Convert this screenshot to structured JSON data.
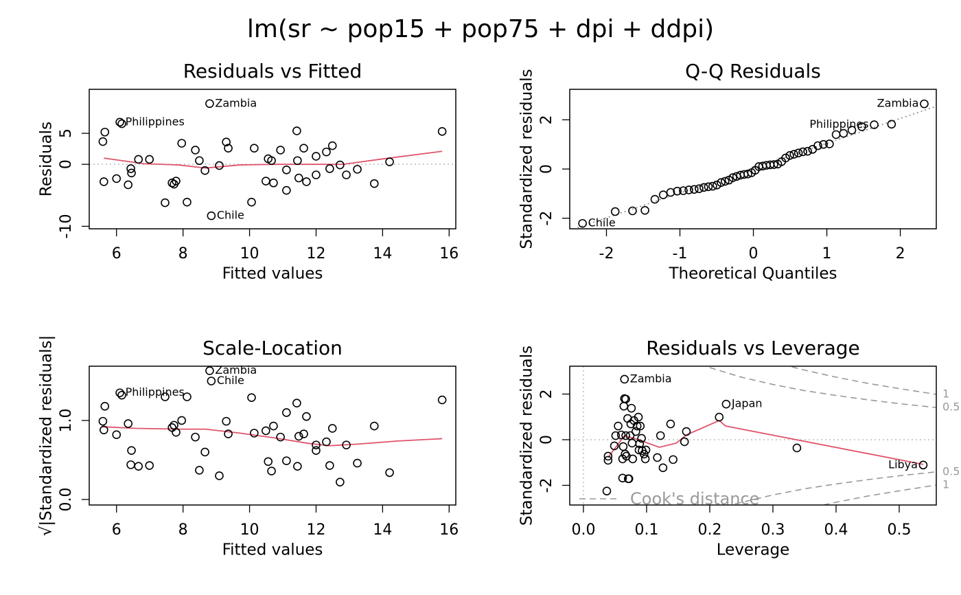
{
  "title": "lm(sr ~ pop15 + pop75 + dpi + ddpi)",
  "chart_data": [
    {
      "type": "scatter",
      "title": "Residuals vs Fitted",
      "xlabel": "Fitted values",
      "ylabel": "Residuals",
      "xlim": [
        5.18,
        16.2
      ],
      "ylim": [
        -10.4,
        12.1
      ],
      "xticks": [
        6,
        8,
        10,
        12,
        14,
        16
      ],
      "yticks": [
        -10,
        0,
        5
      ],
      "hline": 0,
      "color": "#000000",
      "x": [
        5.59,
        5.65,
        5.62,
        6.0,
        6.1,
        6.16,
        6.35,
        6.43,
        6.45,
        6.66,
        6.99,
        7.46,
        7.67,
        7.73,
        7.79,
        7.96,
        8.12,
        8.37,
        8.49,
        8.66,
        8.8,
        8.85,
        9.09,
        9.3,
        9.36,
        10.06,
        10.14,
        10.49,
        10.56,
        10.66,
        10.72,
        10.93,
        11.11,
        11.11,
        11.42,
        11.44,
        11.48,
        11.63,
        11.71,
        12.0,
        12.0,
        12.31,
        12.41,
        12.49,
        12.72,
        12.91,
        13.24,
        13.75,
        14.21,
        15.79
      ],
      "values": [
        3.67,
        5.2,
        -2.8,
        -2.3,
        6.8,
        6.55,
        -3.3,
        -0.7,
        -1.4,
        0.8,
        0.8,
        -6.2,
        -3.0,
        -3.2,
        -2.7,
        3.4,
        -6.1,
        2.3,
        0.6,
        -1.0,
        9.8,
        -8.3,
        -0.2,
        3.6,
        2.6,
        -6.1,
        2.6,
        -2.7,
        0.9,
        0.6,
        -3.0,
        2.3,
        -0.9,
        -4.2,
        5.4,
        0.6,
        -2.2,
        2.6,
        -2.8,
        1.3,
        -1.7,
        2.0,
        -0.7,
        3.0,
        -0.1,
        -1.7,
        -0.8,
        -3.1,
        0.4,
        5.3
      ],
      "point_labels": [
        null,
        null,
        null,
        null,
        "Philippines",
        null,
        null,
        null,
        null,
        null,
        null,
        null,
        null,
        null,
        null,
        null,
        null,
        null,
        null,
        null,
        "Zambia",
        "Chile",
        null,
        null,
        null,
        null,
        null,
        null,
        null,
        null,
        null,
        null,
        null,
        null,
        null,
        null,
        null,
        null,
        null,
        null,
        null,
        null,
        null,
        null,
        null,
        null,
        null,
        null,
        null,
        null
      ],
      "smooth": {
        "color": "#df536b",
        "x": [
          5.62,
          6.82,
          7.86,
          8.68,
          9.71,
          10.74,
          11.77,
          12.8,
          14.04,
          15.79
        ],
        "values": [
          1.0,
          0.1,
          -0.1,
          -0.6,
          -0.1,
          0,
          0,
          0,
          0.9,
          2.1
        ]
      }
    },
    {
      "type": "scatter",
      "title": "Q-Q Residuals",
      "xlabel": "Theoretical Quantiles",
      "ylabel": "Standardized residuals",
      "xlim": [
        -2.5,
        2.49
      ],
      "ylim": [
        -2.43,
        3.24
      ],
      "xticks": [
        -2,
        -1,
        0,
        1,
        2
      ],
      "yticks": [
        -2,
        0,
        2
      ],
      "color": "#000000",
      "x": [
        -2.326,
        -1.881,
        -1.645,
        -1.476,
        -1.341,
        -1.227,
        -1.126,
        -1.036,
        -0.954,
        -0.878,
        -0.806,
        -0.739,
        -0.674,
        -0.613,
        -0.553,
        -0.496,
        -0.44,
        -0.385,
        -0.332,
        -0.279,
        -0.228,
        -0.176,
        -0.126,
        -0.075,
        -0.025,
        0.025,
        0.075,
        0.126,
        0.176,
        0.228,
        0.279,
        0.332,
        0.385,
        0.44,
        0.496,
        0.553,
        0.613,
        0.674,
        0.739,
        0.806,
        0.878,
        0.954,
        1.036,
        1.126,
        1.227,
        1.341,
        1.476,
        1.645,
        1.881,
        2.326
      ],
      "values": [
        -2.21,
        -1.73,
        -1.7,
        -1.68,
        -1.23,
        -1.05,
        -0.95,
        -0.9,
        -0.88,
        -0.85,
        -0.83,
        -0.8,
        -0.75,
        -0.72,
        -0.7,
        -0.65,
        -0.55,
        -0.5,
        -0.45,
        -0.35,
        -0.3,
        -0.25,
        -0.22,
        -0.2,
        -0.15,
        -0.05,
        0.1,
        0.12,
        0.15,
        0.17,
        0.18,
        0.2,
        0.3,
        0.45,
        0.55,
        0.6,
        0.65,
        0.7,
        0.72,
        0.8,
        0.95,
        1.0,
        1.02,
        1.4,
        1.45,
        1.58,
        1.72,
        1.8,
        1.82,
        2.65
      ],
      "point_labels": [
        "Chile",
        null,
        null,
        null,
        null,
        null,
        null,
        null,
        null,
        null,
        null,
        null,
        null,
        null,
        null,
        null,
        null,
        null,
        null,
        null,
        null,
        null,
        null,
        null,
        null,
        null,
        null,
        null,
        null,
        null,
        null,
        null,
        null,
        null,
        null,
        null,
        null,
        null,
        null,
        null,
        null,
        null,
        null,
        null,
        null,
        null,
        null,
        "Philippines",
        null,
        "Zambia"
      ],
      "ref_line": {
        "x": [
          -2.5,
          2.49
        ],
        "values": [
          -2.49,
          2.55
        ]
      }
    },
    {
      "type": "scatter",
      "title": "Scale-Location",
      "xlabel": "Fitted values",
      "ylabel": "√|Standardized residuals|",
      "xlim": [
        5.18,
        16.2
      ],
      "ylim": [
        -0.07,
        1.687
      ],
      "xticks": [
        6,
        8,
        10,
        12,
        14,
        16
      ],
      "yticks": [
        {
          "value": 0,
          "label": "0.0"
        },
        {
          "value": 1,
          "label": "1.0"
        }
      ],
      "color": "#000000",
      "x": [
        5.59,
        5.65,
        5.62,
        6.0,
        6.1,
        6.16,
        6.35,
        6.43,
        6.45,
        6.66,
        6.99,
        7.46,
        7.67,
        7.73,
        7.79,
        7.96,
        8.12,
        8.37,
        8.49,
        8.66,
        8.8,
        8.85,
        9.09,
        9.3,
        9.36,
        10.06,
        10.14,
        10.49,
        10.56,
        10.66,
        10.72,
        10.93,
        11.11,
        11.11,
        11.42,
        11.44,
        11.48,
        11.63,
        11.71,
        12.0,
        12.0,
        12.31,
        12.41,
        12.49,
        12.72,
        12.91,
        13.24,
        13.75,
        14.21,
        15.79
      ],
      "values": [
        0.99,
        1.18,
        0.88,
        0.82,
        1.35,
        1.32,
        0.96,
        0.44,
        0.62,
        0.42,
        0.43,
        1.3,
        0.91,
        0.94,
        0.85,
        1.0,
        1.3,
        0.79,
        0.37,
        0.6,
        1.63,
        1.5,
        0.3,
        0.99,
        0.83,
        1.29,
        0.84,
        0.87,
        0.48,
        0.36,
        0.93,
        0.79,
        0.49,
        1.1,
        1.22,
        0.42,
        0.8,
        0.83,
        1.05,
        0.69,
        0.62,
        0.73,
        0.43,
        0.9,
        0.22,
        0.69,
        0.46,
        0.93,
        0.34,
        1.26
      ],
      "point_labels": [
        null,
        null,
        null,
        null,
        "Philippines",
        null,
        null,
        null,
        null,
        null,
        null,
        null,
        null,
        null,
        null,
        null,
        null,
        null,
        null,
        null,
        "Zambia",
        "Chile",
        null,
        null,
        null,
        null,
        null,
        null,
        null,
        null,
        null,
        null,
        null,
        null,
        null,
        null,
        null,
        null,
        null,
        null,
        null,
        null,
        null,
        null,
        null,
        null,
        null,
        null,
        null,
        null
      ],
      "smooth": {
        "color": "#df536b",
        "x": [
          5.59,
          6.62,
          7.86,
          8.68,
          9.71,
          10.74,
          11.77,
          12.39,
          13.21,
          14.45,
          15.79
        ],
        "values": [
          0.92,
          0.9,
          0.89,
          0.89,
          0.84,
          0.78,
          0.71,
          0.68,
          0.7,
          0.74,
          0.77
        ]
      }
    },
    {
      "type": "scatter",
      "title": "Residuals vs Leverage",
      "xlabel": "Leverage",
      "ylabel": "Standardized residuals",
      "xlim": [
        -0.0217,
        0.5587
      ],
      "ylim": [
        -2.86,
        3.22
      ],
      "xticks": [
        {
          "value": 0,
          "label": "0.0"
        },
        0.1,
        0.2,
        0.3,
        0.4,
        0.5
      ],
      "yticks": [
        -2,
        0,
        2
      ],
      "hline": 0,
      "vline": 0,
      "color": "#000000",
      "x": [
        0.039,
        0.039,
        0.037,
        0.049,
        0.051,
        0.055,
        0.06,
        0.062,
        0.062,
        0.063,
        0.064,
        0.065,
        0.065,
        0.067,
        0.066,
        0.067,
        0.068,
        0.07,
        0.071,
        0.072,
        0.074,
        0.075,
        0.076,
        0.077,
        0.078,
        0.08,
        0.083,
        0.085,
        0.087,
        0.088,
        0.089,
        0.09,
        0.092,
        0.093,
        0.096,
        0.098,
        0.099,
        0.117,
        0.122,
        0.126,
        0.138,
        0.142,
        0.16,
        0.163,
        0.215,
        0.226,
        0.338,
        0.538
      ],
      "values": [
        -0.9,
        -0.72,
        -2.25,
        -0.27,
        0.18,
        0.6,
        0.21,
        -0.84,
        -1.68,
        -0.3,
        1.47,
        2.65,
        1.8,
        1.78,
        -0.63,
        0.18,
        -0.72,
        0.93,
        -1.71,
        -1.71,
        0.18,
        0.69,
        1.38,
        -0.15,
        -0.84,
        0.84,
        0.36,
        0.6,
        0.99,
        -0.45,
        -0.18,
        0.6,
        0.06,
        -0.48,
        -0.63,
        -0.84,
        -0.45,
        -0.78,
        0.18,
        -1.23,
        0.69,
        -0.87,
        -0.09,
        0.36,
        0.99,
        1.56,
        -0.36,
        -1.11
      ],
      "point_labels": [
        null,
        null,
        null,
        null,
        null,
        null,
        null,
        null,
        null,
        null,
        null,
        "Zambia",
        null,
        null,
        null,
        null,
        null,
        null,
        null,
        null,
        null,
        null,
        null,
        null,
        null,
        null,
        null,
        null,
        null,
        null,
        null,
        null,
        null,
        null,
        null,
        null,
        null,
        null,
        null,
        null,
        null,
        null,
        null,
        null,
        null,
        "Japan",
        null,
        "Libya"
      ],
      "smooth": {
        "color": "#df536b",
        "x": [
          0.039,
          0.065,
          0.087,
          0.12,
          0.147,
          0.163,
          0.215,
          0.225,
          0.538
        ],
        "values": [
          -0.78,
          0.18,
          0,
          -0.33,
          -0.15,
          0.21,
          0.84,
          0.6,
          -1.08
        ]
      },
      "cook_legend": "Cook's distance",
      "contours": [
        {
          "level": 1,
          "x": [
            0.33,
            0.35,
            0.4,
            0.45,
            0.5,
            0.558
          ],
          "values": [
            3.19,
            3.05,
            2.74,
            2.47,
            2.24,
            1.99
          ]
        },
        {
          "level": 0.5,
          "x": [
            0.2,
            0.25,
            0.3,
            0.35,
            0.4,
            0.45,
            0.5,
            0.558
          ],
          "values": [
            3.16,
            2.74,
            2.42,
            2.15,
            1.94,
            1.75,
            1.58,
            1.41
          ]
        },
        {
          "level": 0.5,
          "x": [
            0.24,
            0.3,
            0.35,
            0.4,
            0.45,
            0.5,
            0.558
          ],
          "values": [
            -2.81,
            -2.42,
            -2.15,
            -1.94,
            -1.75,
            -1.58,
            -1.41
          ]
        },
        {
          "level": 1,
          "x": [
            0.38,
            0.4,
            0.45,
            0.5,
            0.558
          ],
          "values": [
            -2.86,
            -2.74,
            -2.47,
            -2.24,
            -1.99
          ]
        }
      ]
    }
  ]
}
